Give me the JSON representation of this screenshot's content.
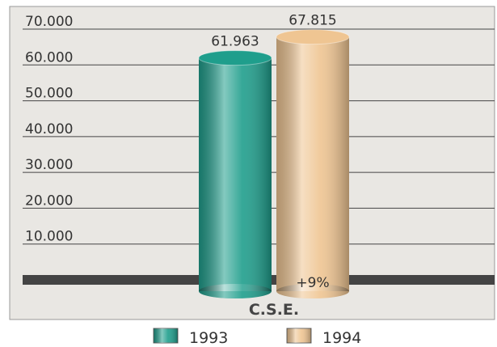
{
  "chart_data": {
    "type": "bar",
    "categories": [
      "C.S.E."
    ],
    "series": [
      {
        "name": "1993",
        "color": "#1f9e8c",
        "values": [
          61963
        ],
        "value_labels": [
          "61.963"
        ]
      },
      {
        "name": "1994",
        "color": "#efc592",
        "values": [
          67815
        ],
        "value_labels": [
          "67.815"
        ]
      }
    ],
    "annotation": "+9%",
    "ylim": [
      0,
      70000
    ],
    "yticks": [
      {
        "value": 10000,
        "label": "10.000"
      },
      {
        "value": 20000,
        "label": "20.000"
      },
      {
        "value": 30000,
        "label": "30.000"
      },
      {
        "value": 40000,
        "label": "40.000"
      },
      {
        "value": 50000,
        "label": "50.000"
      },
      {
        "value": 60000,
        "label": "60.000"
      },
      {
        "value": 70000,
        "label": "70.000"
      }
    ],
    "grid": true
  }
}
